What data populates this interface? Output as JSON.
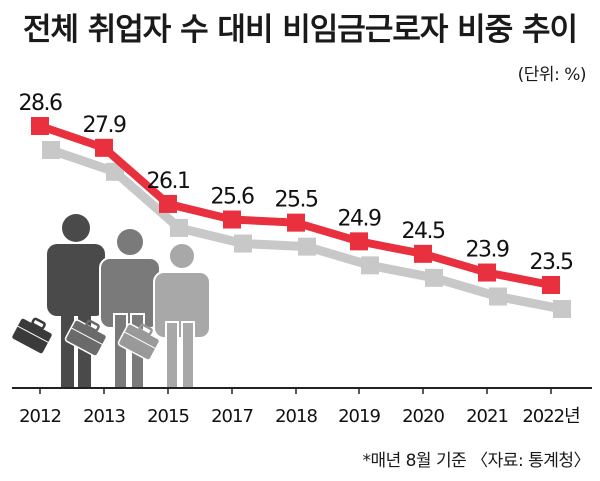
{
  "header": {
    "title": "전체 취업자 수 대비 비임금근로자 비중 추이",
    "unit": "(단위: %)",
    "footnote": "*매년 8월 기준 〈자료: 통계청〉"
  },
  "colors": {
    "line": "#e8303e",
    "marker": "#e8303e",
    "shadow": "#c8c8c8",
    "figure_dark": "#4a4a4a",
    "figure_mid": "#7a7a7a",
    "figure_light": "#a8a8a8"
  },
  "chart_data": {
    "type": "line",
    "title": "전체 취업자 수 대비 비임금근로자 비중 추이",
    "categories": [
      "2012",
      "2013",
      "2015",
      "2017",
      "2018",
      "2019",
      "2020",
      "2021",
      "2022년"
    ],
    "series": [
      {
        "values": [
          28.6,
          27.9,
          26.1,
          25.6,
          25.5,
          24.9,
          24.5,
          23.9,
          23.5
        ]
      }
    ],
    "value_labels": [
      "28.6",
      "27.9",
      "26.1",
      "25.6",
      "25.5",
      "24.9",
      "24.5",
      "23.9",
      "23.5"
    ],
    "ylim": [
      20.5,
      29.8
    ],
    "grid": false,
    "legend": "none",
    "decoration": [
      "person-silhouette-icon",
      "briefcase-icon"
    ]
  }
}
